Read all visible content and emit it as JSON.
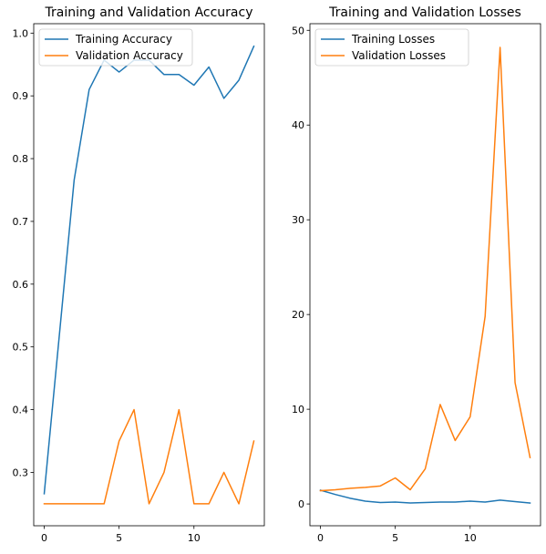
{
  "chart_data": [
    {
      "type": "line",
      "title": "Training and Validation Accuracy",
      "xlabel": "",
      "ylabel": "",
      "xlim": [
        -0.7,
        14.7
      ],
      "ylim": [
        0.215,
        1.015
      ],
      "xticks": [
        0,
        5,
        10
      ],
      "yticks": [
        0.3,
        0.4,
        0.5,
        0.6,
        0.7,
        0.8,
        0.9,
        1.0
      ],
      "ytick_labels": [
        "0.3",
        "0.4",
        "0.5",
        "0.6",
        "0.7",
        "0.8",
        "0.9",
        "1.0"
      ],
      "grid": false,
      "legend": "upper-left",
      "x": [
        0,
        1,
        2,
        3,
        4,
        5,
        6,
        7,
        8,
        9,
        10,
        11,
        12,
        13,
        14
      ],
      "series": [
        {
          "name": "Training Accuracy",
          "color": "#1f77b4",
          "values": [
            0.266,
            0.516,
            0.766,
            0.91,
            0.957,
            0.938,
            0.957,
            0.957,
            0.934,
            0.934,
            0.917,
            0.946,
            0.896,
            0.925,
            0.979
          ]
        },
        {
          "name": "Validation Accuracy",
          "color": "#ff7f0e",
          "values": [
            0.25,
            0.25,
            0.25,
            0.25,
            0.25,
            0.35,
            0.4,
            0.25,
            0.3,
            0.4,
            0.25,
            0.25,
            0.3,
            0.25,
            0.35
          ]
        }
      ]
    },
    {
      "type": "line",
      "title": "Training and Validation Losses",
      "xlabel": "",
      "ylabel": "",
      "xlim": [
        -0.7,
        14.7
      ],
      "ylim": [
        -2.3,
        50.7
      ],
      "xticks": [
        0,
        5,
        10
      ],
      "yticks": [
        0,
        10,
        20,
        30,
        40,
        50
      ],
      "ytick_labels": [
        "0",
        "10",
        "20",
        "30",
        "40",
        "50"
      ],
      "grid": false,
      "legend": "upper-left",
      "x": [
        0,
        1,
        2,
        3,
        4,
        5,
        6,
        7,
        8,
        9,
        10,
        11,
        12,
        13,
        14
      ],
      "series": [
        {
          "name": "Training Losses",
          "color": "#1f77b4",
          "values": [
            1.45,
            1.0,
            0.6,
            0.3,
            0.15,
            0.2,
            0.1,
            0.15,
            0.2,
            0.2,
            0.3,
            0.2,
            0.4,
            0.25,
            0.1
          ]
        },
        {
          "name": "Validation Losses",
          "color": "#ff7f0e",
          "values": [
            1.4,
            1.5,
            1.65,
            1.75,
            1.9,
            2.75,
            1.5,
            3.7,
            10.5,
            6.7,
            9.2,
            19.8,
            48.2,
            12.8,
            4.9
          ]
        }
      ]
    }
  ]
}
